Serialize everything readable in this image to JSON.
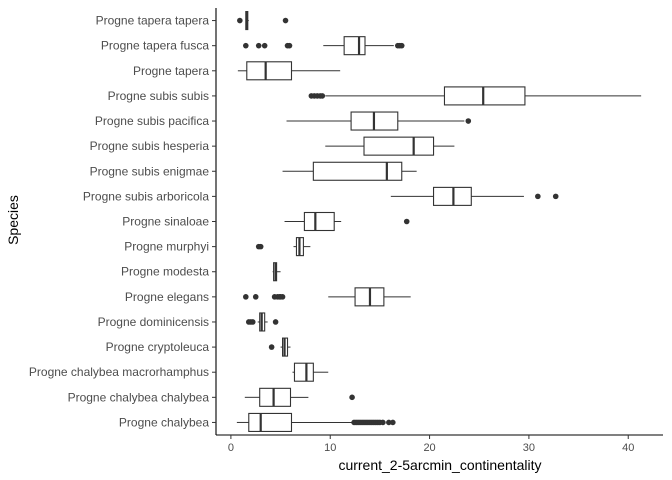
{
  "chart_data": {
    "type": "boxplot",
    "orientation": "horizontal",
    "xlabel": "current_2-5arcmin_continentality",
    "ylabel": "Species",
    "xlim": [
      -1.5,
      43.5
    ],
    "xticks": [
      0,
      10,
      20,
      30,
      40
    ],
    "grid": false,
    "categories": [
      "Progne tapera tapera",
      "Progne tapera fusca",
      "Progne tapera",
      "Progne subis subis",
      "Progne subis pacifica",
      "Progne subis hesperia",
      "Progne subis enigmae",
      "Progne subis arboricola",
      "Progne sinaloae",
      "Progne murphyi",
      "Progne modesta",
      "Progne elegans",
      "Progne dominicensis",
      "Progne cryptoleuca",
      "Progne chalybea macrorhamphus",
      "Progne chalybea chalybea",
      "Progne chalybea"
    ],
    "boxes": [
      {
        "min": 1.5,
        "q1": 1.5,
        "median": 1.6,
        "q3": 1.7,
        "max": 1.8,
        "outliers": [
          0.9,
          5.5
        ]
      },
      {
        "min": 9.3,
        "q1": 11.4,
        "median": 12.9,
        "q3": 13.5,
        "max": 16.4,
        "outliers": [
          1.5,
          2.8,
          3.4,
          5.7,
          5.9,
          16.8,
          17.0,
          17.2
        ]
      },
      {
        "min": 0.7,
        "q1": 1.6,
        "median": 3.5,
        "q3": 6.1,
        "max": 11.0,
        "outliers": []
      },
      {
        "min": 9.5,
        "q1": 21.5,
        "median": 25.4,
        "q3": 29.6,
        "max": 41.3,
        "outliers": [
          8.1,
          8.4,
          8.7,
          9.0,
          9.2
        ]
      },
      {
        "min": 5.6,
        "q1": 12.1,
        "median": 14.4,
        "q3": 16.8,
        "max": 23.5,
        "outliers": [
          23.9
        ]
      },
      {
        "min": 9.5,
        "q1": 13.4,
        "median": 18.4,
        "q3": 20.4,
        "max": 22.5,
        "outliers": []
      },
      {
        "min": 5.2,
        "q1": 8.3,
        "median": 15.7,
        "q3": 17.2,
        "max": 18.7,
        "outliers": []
      },
      {
        "min": 16.1,
        "q1": 20.4,
        "median": 22.4,
        "q3": 24.2,
        "max": 29.5,
        "outliers": [
          30.9,
          32.7
        ]
      },
      {
        "min": 5.4,
        "q1": 7.4,
        "median": 8.5,
        "q3": 10.4,
        "max": 11.1,
        "outliers": [
          17.7
        ]
      },
      {
        "min": 6.3,
        "q1": 6.6,
        "median": 6.9,
        "q3": 7.3,
        "max": 8.0,
        "outliers": [
          2.8,
          3.0
        ]
      },
      {
        "min": 4.2,
        "q1": 4.3,
        "median": 4.5,
        "q3": 4.6,
        "max": 5.0,
        "outliers": []
      },
      {
        "min": 9.8,
        "q1": 12.5,
        "median": 14.0,
        "q3": 15.4,
        "max": 18.1,
        "outliers": [
          1.5,
          2.5,
          4.4,
          4.7,
          4.9,
          5.0,
          5.2
        ]
      },
      {
        "min": 2.7,
        "q1": 2.9,
        "median": 3.1,
        "q3": 3.4,
        "max": 3.7,
        "outliers": [
          1.8,
          2.0,
          2.2,
          4.5
        ]
      },
      {
        "min": 5.0,
        "q1": 5.2,
        "median": 5.4,
        "q3": 5.7,
        "max": 6.0,
        "outliers": [
          4.1
        ]
      },
      {
        "min": 6.2,
        "q1": 6.4,
        "median": 7.6,
        "q3": 8.3,
        "max": 9.8,
        "outliers": []
      },
      {
        "min": 1.4,
        "q1": 2.9,
        "median": 4.3,
        "q3": 6.0,
        "max": 7.8,
        "outliers": [
          12.2
        ]
      },
      {
        "min": 0.6,
        "q1": 1.8,
        "median": 3.0,
        "q3": 6.1,
        "max": 12.3,
        "outliers": [
          12.4,
          12.6,
          12.8,
          13.0,
          13.2,
          13.4,
          13.6,
          13.8,
          14.0,
          14.2,
          14.4,
          14.6,
          14.8,
          15.0,
          15.3,
          15.9,
          16.3
        ]
      }
    ]
  }
}
